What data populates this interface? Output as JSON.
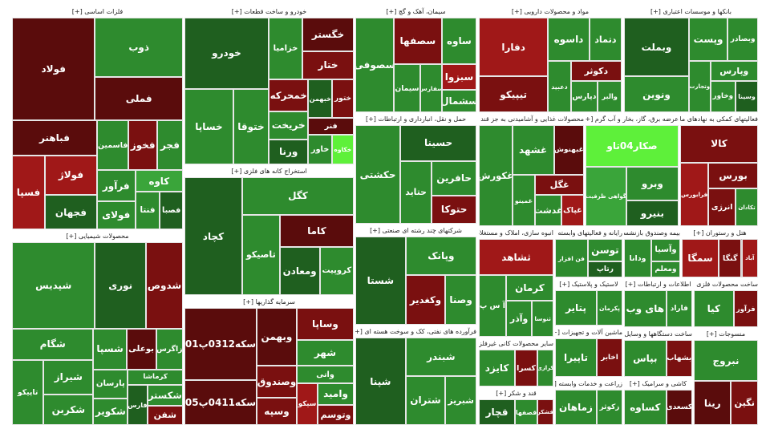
{
  "sectors": [
    {
      "title": "فلزات اساسی [+]",
      "tiles": [
        {
          "label": "فولاد",
          "color": "#5a0c0c"
        },
        {
          "label": "ذوب",
          "color": "#2e8b2e"
        },
        {
          "label": "فملی",
          "color": "#5a0c0c"
        },
        {
          "label": "فباهنر",
          "color": "#5a0c0c"
        },
        {
          "label": "فسپا",
          "color": "#a01818"
        },
        {
          "label": "فولاژ",
          "color": "#a01818"
        },
        {
          "label": "فجهان",
          "color": "#1f5f1f"
        },
        {
          "label": "فاسمین",
          "color": "#2e8b2e"
        },
        {
          "label": "فخوز",
          "color": "#7a1010"
        },
        {
          "label": "فجر",
          "color": "#2e8b2e"
        },
        {
          "label": "فرآور",
          "color": "#2e8b2e"
        },
        {
          "label": "فولای",
          "color": "#2e8b2e"
        },
        {
          "label": "کاوه",
          "color": "#3aa53a"
        },
        {
          "label": "فنتا",
          "color": "#2e8b2e"
        },
        {
          "label": "فصبا",
          "color": "#1f5f1f"
        }
      ]
    },
    {
      "title": "محصولات شیمیایی [+]",
      "tiles": [
        {
          "label": "شپدیس",
          "color": "#2e8b2e"
        },
        {
          "label": "نوری",
          "color": "#1f5f1f"
        },
        {
          "label": "شدوص",
          "color": "#7a1010"
        },
        {
          "label": "شگام",
          "color": "#2e8b2e"
        },
        {
          "label": "تاپیکو",
          "color": "#2e8b2e"
        },
        {
          "label": "شیراز",
          "color": "#2e8b2e"
        },
        {
          "label": "شکربن",
          "color": "#2e8b2e"
        },
        {
          "label": "شسپا",
          "color": "#2e8b2e"
        },
        {
          "label": "بوعلی",
          "color": "#5a0c0c"
        },
        {
          "label": "زاگرس",
          "color": "#2e8b2e"
        },
        {
          "label": "پارسان",
          "color": "#2e8b2e"
        },
        {
          "label": "شکویر",
          "color": "#2e8b2e"
        },
        {
          "label": "کرماشا",
          "color": "#2e8b2e"
        },
        {
          "label": "فارس",
          "color": "#1f5f1f"
        },
        {
          "label": "شکستر",
          "color": "#2e8b2e"
        },
        {
          "label": "شفن",
          "color": "#7a1010"
        }
      ]
    },
    {
      "title": "خودرو و ساخت قطعات [+]",
      "tiles": [
        {
          "label": "خودرو",
          "color": "#1f5f1f"
        },
        {
          "label": "خساپا",
          "color": "#2e8b2e"
        },
        {
          "label": "ختوقا",
          "color": "#2e8b2e"
        },
        {
          "label": "خزامیا",
          "color": "#2e8b2e"
        },
        {
          "label": "خگستر",
          "color": "#5a0c0c"
        },
        {
          "label": "ختار",
          "color": "#7a1010"
        },
        {
          "label": "خمحرکه",
          "color": "#7a1010"
        },
        {
          "label": "خریخت",
          "color": "#2e8b2e"
        },
        {
          "label": "ورنا",
          "color": "#1f5f1f"
        },
        {
          "label": "خبهمن",
          "color": "#1f5f1f"
        },
        {
          "label": "ختور",
          "color": "#7a1010"
        },
        {
          "label": "فنر",
          "color": "#5a0c0c"
        },
        {
          "label": "خاور",
          "color": "#2e8b2e"
        },
        {
          "label": "خکاوه",
          "color": "#5ef03a"
        }
      ]
    },
    {
      "title": "استخراج کانه های فلزی [+]",
      "tiles": [
        {
          "label": "کچاد",
          "color": "#1f5f1f"
        },
        {
          "label": "کگل",
          "color": "#2e8b2e"
        },
        {
          "label": "تاصیکو",
          "color": "#2e8b2e"
        },
        {
          "label": "کاما",
          "color": "#5a0c0c"
        },
        {
          "label": "ومعادن",
          "color": "#1f5f1f"
        },
        {
          "label": "کروپیت",
          "color": "#2e8b2e"
        }
      ]
    },
    {
      "title": "سرمایه گذاریها [+]",
      "tiles": [
        {
          "label": "سکه0312پ01",
          "color": "#5a0c0c"
        },
        {
          "label": "سکه0411پ05",
          "color": "#5a0c0c"
        },
        {
          "label": "وبهمن",
          "color": "#5a0c0c"
        },
        {
          "label": "وساپا",
          "color": "#7a1010"
        },
        {
          "label": "شهر",
          "color": "#2e8b2e"
        },
        {
          "label": "وصندوق",
          "color": "#7a1010"
        },
        {
          "label": "وسپه",
          "color": "#7a1010"
        },
        {
          "label": "واتی",
          "color": "#2e8b2e"
        },
        {
          "label": "سیکو",
          "color": "#a01818"
        },
        {
          "label": "وامید",
          "color": "#2e8b2e"
        },
        {
          "label": "وتوسم",
          "color": "#7a1010"
        }
      ]
    },
    {
      "title": "سیمان، آهک و گچ [+]",
      "tiles": [
        {
          "label": "سصوفی",
          "color": "#2e8b2e"
        },
        {
          "label": "سصفها",
          "color": "#7a1010"
        },
        {
          "label": "ساوه",
          "color": "#2e8b2e"
        },
        {
          "label": "سیمان",
          "color": "#2e8b2e"
        },
        {
          "label": "سفارس",
          "color": "#2e8b2e"
        },
        {
          "label": "سبزوا",
          "color": "#a01818"
        },
        {
          "label": "سشمال",
          "color": "#2e8b2e"
        }
      ]
    },
    {
      "title": "حمل و نقل، انبارداری و ارتباطات [+]",
      "tiles": [
        {
          "label": "حکشتی",
          "color": "#2e8b2e"
        },
        {
          "label": "حسینا",
          "color": "#1f5f1f"
        },
        {
          "label": "حتاید",
          "color": "#2e8b2e"
        },
        {
          "label": "حافرین",
          "color": "#2e8b2e"
        },
        {
          "label": "حتوکا",
          "color": "#7a1010"
        }
      ]
    },
    {
      "title": "شرکتهای چند رشته ای صنعتی [+]",
      "tiles": [
        {
          "label": "شستا",
          "color": "#1f5f1f"
        },
        {
          "label": "وپانک",
          "color": "#2e8b2e"
        },
        {
          "label": "وکغدیر",
          "color": "#7a1010"
        },
        {
          "label": "وصنا",
          "color": "#2e8b2e"
        }
      ]
    },
    {
      "title": "فرآورده های نفتی، کک و سوخت هسته ای [+]",
      "tiles": [
        {
          "label": "شپنا",
          "color": "#1f5f1f"
        },
        {
          "label": "شبندر",
          "color": "#2e8b2e"
        },
        {
          "label": "شتران",
          "color": "#2e8b2e"
        },
        {
          "label": "شبریز",
          "color": "#2e8b2e"
        }
      ]
    },
    {
      "title": "مواد و محصولات دارویی [+]",
      "tiles": [
        {
          "label": "دفارا",
          "color": "#a01818"
        },
        {
          "label": "تیپیکو",
          "color": "#7a1010"
        },
        {
          "label": "داسوه",
          "color": "#2e8b2e"
        },
        {
          "label": "دتماد",
          "color": "#2e8b2e"
        },
        {
          "label": "دعبید",
          "color": "#2e8b2e"
        },
        {
          "label": "دکوثر",
          "color": "#7a1010"
        },
        {
          "label": "دپارس",
          "color": "#2e8b2e"
        },
        {
          "label": "والبر",
          "color": "#2e8b2e"
        }
      ]
    },
    {
      "title": "محصولات غذایی و آشامیدنی به جز قند و شکر [+]",
      "tiles": [
        {
          "label": "غکورش",
          "color": "#2e8b2e"
        },
        {
          "label": "غشهد",
          "color": "#2e8b2e"
        },
        {
          "label": "غبهنوش",
          "color": "#5a0c0c"
        },
        {
          "label": "غمینو",
          "color": "#2e8b2e"
        },
        {
          "label": "غگل",
          "color": "#7a1010"
        },
        {
          "label": "غدشت",
          "color": "#2e8b2e"
        },
        {
          "label": "غپاک",
          "color": "#a01818"
        }
      ]
    },
    {
      "title": "عرضه برق، گاز، بخار و آب گرم [+]",
      "tiles": [
        {
          "label": "صکار04تاو",
          "color": "#5ef03a"
        },
        {
          "label": "گواهی ظرفیت",
          "color": "#3aa53a"
        },
        {
          "label": "وبرو",
          "color": "#2e8b2e"
        },
        {
          "label": "بنیرو",
          "color": "#1f5f1f"
        }
      ]
    },
    {
      "title": "فعالیتهای کمکی به نهادهای مالی واسط [+]",
      "tiles": [
        {
          "label": "کالا",
          "color": "#7a1010"
        },
        {
          "label": "فرابورس",
          "color": "#a01818"
        },
        {
          "label": "بورس",
          "color": "#7a1010"
        },
        {
          "label": "انرژی",
          "color": "#7a1010"
        },
        {
          "label": "تکادان",
          "color": "#2e8b2e"
        }
      ]
    },
    {
      "title": "بانکها و موسسات اعتباری [+]",
      "tiles": [
        {
          "label": "وبملت",
          "color": "#1f5f1f"
        },
        {
          "label": "ونوین",
          "color": "#2e8b2e"
        },
        {
          "label": "وپست",
          "color": "#2e8b2e"
        },
        {
          "label": "وبصادر",
          "color": "#2e8b2e"
        },
        {
          "label": "وتجارت",
          "color": "#2e8b2e"
        },
        {
          "label": "وپارس",
          "color": "#2e8b2e"
        },
        {
          "label": "وخاور",
          "color": "#2e8b2e"
        },
        {
          "label": "وسینا",
          "color": "#1f5f1f"
        }
      ]
    },
    {
      "title": "انبوه سازی، املاک و مستغلات [+]",
      "tiles": [
        {
          "label": "ثشاهد",
          "color": "#a01818"
        },
        {
          "label": "آ س پ",
          "color": "#2e8b2e"
        },
        {
          "label": "کرمان",
          "color": "#2e8b2e"
        },
        {
          "label": "وآذر",
          "color": "#2e8b2e"
        },
        {
          "label": "ثنوسا",
          "color": "#2e8b2e"
        }
      ]
    },
    {
      "title": "رایانه و فعالیتهای وابسته به آن [+]",
      "tiles": [
        {
          "label": "فن افزار",
          "color": "#2e8b2e"
        },
        {
          "label": "توسن",
          "color": "#2e8b2e"
        },
        {
          "label": "رتاپ",
          "color": "#1f5f1f"
        }
      ]
    },
    {
      "title": "بیمه وصندوق بازنشستگی [+]",
      "tiles": [
        {
          "label": "ودانا",
          "color": "#2e8b2e"
        },
        {
          "label": "وآسیا",
          "color": "#2e8b2e"
        },
        {
          "label": "ومعلم",
          "color": "#2e8b2e"
        }
      ]
    },
    {
      "title": "هتل و رستوران [+]",
      "tiles": [
        {
          "label": "سمگا",
          "color": "#a01818"
        },
        {
          "label": "گنگا",
          "color": "#7a1010"
        },
        {
          "label": "آباد",
          "color": "#a01818"
        }
      ]
    },
    {
      "title": "سایر محصولات کانی غیرفلزی [+]",
      "tiles": [
        {
          "label": "کایزد",
          "color": "#2e8b2e"
        },
        {
          "label": "کسرا",
          "color": "#7a1010"
        },
        {
          "label": "کرازی",
          "color": "#2e8b2e"
        }
      ]
    },
    {
      "title": "قند و شکر [+]",
      "tiles": [
        {
          "label": "قچار",
          "color": "#1f5f1f"
        },
        {
          "label": "قصفها",
          "color": "#2e8b2e"
        },
        {
          "label": "قشکر",
          "color": "#7a1010"
        }
      ]
    },
    {
      "title": "لاستیک و پلاستیک [+]",
      "tiles": [
        {
          "label": "پتایر",
          "color": "#2e8b2e"
        },
        {
          "label": "پکرمان",
          "color": "#2e8b2e"
        }
      ]
    },
    {
      "title": "ماشین آلات و تجهیزات [+]",
      "tiles": [
        {
          "label": "تاپیرا",
          "color": "#2e8b2e"
        },
        {
          "label": "اخابر",
          "color": "#7a1010"
        }
      ]
    },
    {
      "title": "اطلاعات و ارتباطات [+]",
      "tiles": [
        {
          "label": "های وب",
          "color": "#2e8b2e"
        },
        {
          "label": "فاراد",
          "color": "#2e8b2e"
        }
      ]
    },
    {
      "title": "ساخت محصولات فلزی [+]",
      "tiles": [
        {
          "label": "کیا",
          "color": "#2e8b2e"
        },
        {
          "label": "فرآور",
          "color": "#7a1010"
        }
      ]
    },
    {
      "title": "ساخت دستگاهها و وسایل برقی [+]",
      "tiles": [
        {
          "label": "بپاس",
          "color": "#2e8b2e"
        },
        {
          "label": "بشهاب",
          "color": "#7a1010"
        }
      ]
    },
    {
      "title": "زراعت و خدمات وابسته [+]",
      "tiles": [
        {
          "label": "زماهان",
          "color": "#2e8b2e"
        },
        {
          "label": "زکوثر",
          "color": "#2e8b2e"
        }
      ]
    },
    {
      "title": "کاشی و سرامیک [+]",
      "tiles": [
        {
          "label": "کساوه",
          "color": "#2e8b2e"
        },
        {
          "label": "کسعدی",
          "color": "#5a0c0c"
        }
      ]
    },
    {
      "title": "منسوجات [+]",
      "tiles": [
        {
          "label": "نبروج",
          "color": "#2e8b2e"
        },
        {
          "label": "رینا",
          "color": "#5a0c0c"
        },
        {
          "label": "نگین",
          "color": "#7a1010"
        }
      ]
    }
  ]
}
